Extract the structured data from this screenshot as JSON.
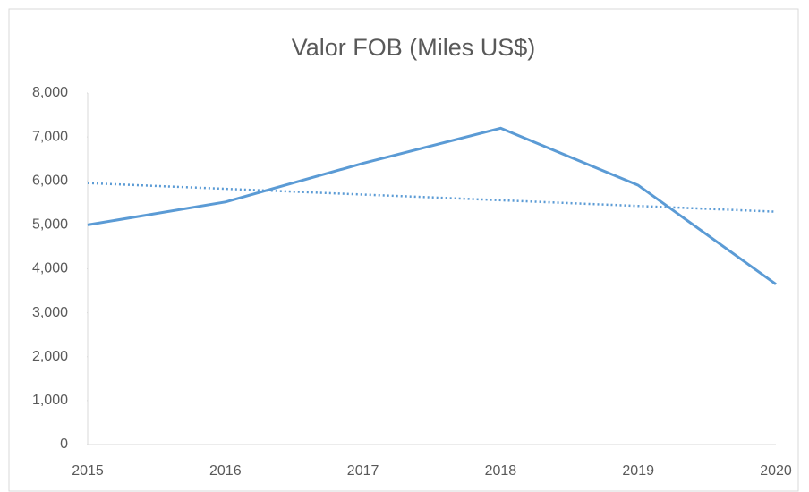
{
  "chart_data": {
    "type": "line",
    "title": "Valor FOB (Miles US$)",
    "categories": [
      "2015",
      "2016",
      "2017",
      "2018",
      "2019",
      "2020"
    ],
    "series": [
      {
        "color": "#5b9bd5",
        "style": "solid",
        "values": [
          5000,
          5520,
          6400,
          7200,
          5900,
          3650
        ]
      },
      {
        "color": "#5b9bd5",
        "style": "dotted",
        "values": [
          5950,
          5820,
          5690,
          5560,
          5430,
          5300
        ]
      }
    ],
    "ylim": [
      0,
      8000
    ],
    "yticks": [
      0,
      {
        "value": 1000,
        "label": "1,000"
      },
      {
        "value": 2000,
        "label": "2,000"
      },
      {
        "value": 3000,
        "label": "3,000"
      },
      {
        "value": 4000,
        "label": "4,000"
      },
      {
        "value": 5000,
        "label": "5,000"
      },
      {
        "value": 6000,
        "label": "6,000"
      },
      {
        "value": 7000,
        "label": "7,000"
      },
      {
        "value": 8000,
        "label": "8,000"
      }
    ],
    "grid": false
  }
}
